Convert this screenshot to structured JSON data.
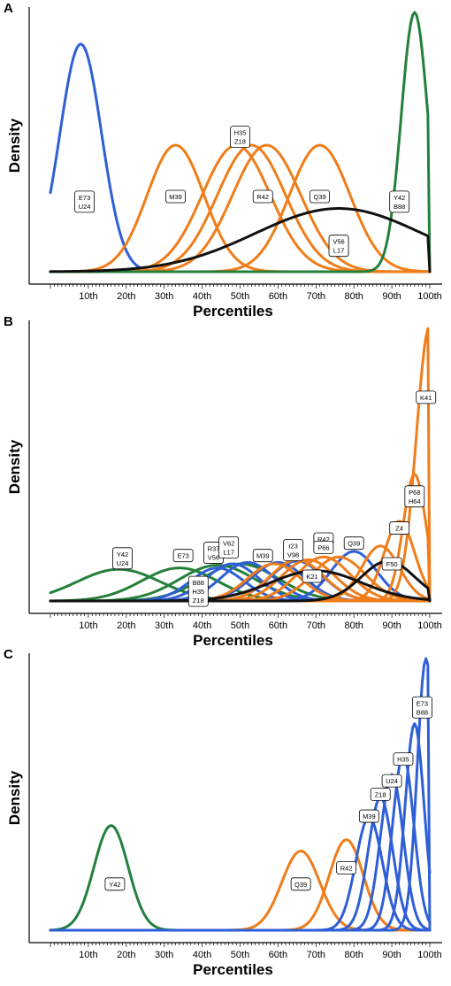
{
  "colors": {
    "green": "#23803a",
    "blue": "#2f5fd6",
    "orange": "#f07d1a",
    "black": "#111111"
  },
  "chart_data": [
    {
      "type": "line",
      "panel": "A",
      "ylabel": "Density",
      "xlabel": "Percentiles",
      "xlim": [
        0,
        100
      ],
      "x_ticks": [
        "10th",
        "20th",
        "30th",
        "40th",
        "50th",
        "60th",
        "70th",
        "80th",
        "90th",
        "100th"
      ],
      "series": [
        {
          "color": "blue",
          "mean": 8,
          "sd": 5.5,
          "peak": 0.72
        },
        {
          "color": "orange",
          "mean": 33,
          "sd": 7.5,
          "peak": 0.4
        },
        {
          "color": "orange",
          "mean": 49,
          "sd": 9,
          "peak": 0.4
        },
        {
          "color": "orange",
          "mean": 53,
          "sd": 9,
          "peak": 0.4
        },
        {
          "color": "orange",
          "mean": 57,
          "sd": 9,
          "peak": 0.4
        },
        {
          "color": "orange",
          "mean": 71,
          "sd": 8,
          "peak": 0.4
        },
        {
          "color": "green",
          "mean": 96,
          "sd": 3.5,
          "peak": 0.82,
          "cutoff": 100
        },
        {
          "color": "black",
          "mean": 76,
          "sd": 22,
          "peak": 0.2,
          "cutoff": 100
        }
      ],
      "labels": [
        {
          "text": [
            "E73",
            "U24"
          ],
          "x": 9,
          "y": 0.27
        },
        {
          "text": [
            "M39"
          ],
          "x": 33,
          "y": 0.29
        },
        {
          "text": [
            "H35",
            "Z18"
          ],
          "x": 50,
          "y": 0.52
        },
        {
          "text": [
            "R42"
          ],
          "x": 56,
          "y": 0.29
        },
        {
          "text": [
            "Q39"
          ],
          "x": 71,
          "y": 0.29
        },
        {
          "text": [
            "V56",
            "L17"
          ],
          "x": 76,
          "y": 0.1
        },
        {
          "text": [
            "Y42",
            "B88"
          ],
          "x": 92,
          "y": 0.27
        }
      ]
    },
    {
      "type": "line",
      "panel": "B",
      "ylabel": "Density",
      "xlabel": "Percentiles",
      "xlim": [
        0,
        100
      ],
      "x_ticks": [
        "10th",
        "20th",
        "30th",
        "40th",
        "50th",
        "60th",
        "70th",
        "80th",
        "90th",
        "100th"
      ],
      "series": [
        {
          "color": "green",
          "mean": 18,
          "sd": 11,
          "peak": 0.115
        },
        {
          "color": "green",
          "mean": 34,
          "sd": 10,
          "peak": 0.12
        },
        {
          "color": "green",
          "mean": 44,
          "sd": 10,
          "peak": 0.13
        },
        {
          "color": "green",
          "mean": 50,
          "sd": 10,
          "peak": 0.135
        },
        {
          "color": "blue",
          "mean": 44,
          "sd": 7,
          "peak": 0.12
        },
        {
          "color": "blue",
          "mean": 48,
          "sd": 7,
          "peak": 0.135
        },
        {
          "color": "blue",
          "mean": 52,
          "sd": 7,
          "peak": 0.14
        },
        {
          "color": "blue",
          "mean": 60,
          "sd": 7,
          "peak": 0.14
        },
        {
          "color": "blue",
          "mean": 65,
          "sd": 7,
          "peak": 0.145
        },
        {
          "color": "blue",
          "mean": 80,
          "sd": 6,
          "peak": 0.18
        },
        {
          "color": "orange",
          "mean": 59,
          "sd": 7,
          "peak": 0.135
        },
        {
          "color": "orange",
          "mean": 65,
          "sd": 7,
          "peak": 0.15
        },
        {
          "color": "orange",
          "mean": 68,
          "sd": 7,
          "peak": 0.15
        },
        {
          "color": "orange",
          "mean": 72,
          "sd": 7,
          "peak": 0.16
        },
        {
          "color": "orange",
          "mean": 76,
          "sd": 7,
          "peak": 0.16
        },
        {
          "color": "orange",
          "mean": 87,
          "sd": 5,
          "peak": 0.2
        },
        {
          "color": "orange",
          "mean": 92,
          "sd": 4,
          "peak": 0.29
        },
        {
          "color": "orange",
          "mean": 96,
          "sd": 3,
          "peak": 0.46,
          "cutoff": 100
        },
        {
          "color": "orange",
          "mean": 100,
          "sd": 3.5,
          "peak": 1.0,
          "cutoff": 100
        },
        {
          "color": "black",
          "mean": 70,
          "sd": 12,
          "peak": 0.11
        },
        {
          "color": "black",
          "mean": 89,
          "sd": 7,
          "peak": 0.145,
          "cutoff": 100
        }
      ],
      "labels": [
        {
          "text": [
            "Y42",
            "U24"
          ],
          "x": 19,
          "y": 0.155
        },
        {
          "text": [
            "E73"
          ],
          "x": 35,
          "y": 0.165
        },
        {
          "text": [
            "B88",
            "H35",
            "Z18"
          ],
          "x": 39,
          "y": 0.035
        },
        {
          "text": [
            "R37",
            "V56"
          ],
          "x": 43,
          "y": 0.175
        },
        {
          "text": [
            "V62",
            "L17"
          ],
          "x": 47,
          "y": 0.195
        },
        {
          "text": [
            "M39"
          ],
          "x": 56,
          "y": 0.165
        },
        {
          "text": [
            "I23",
            "V98"
          ],
          "x": 64,
          "y": 0.185
        },
        {
          "text": [
            "R42"
          ],
          "x": 72,
          "y": 0.225
        },
        {
          "text": [
            "P66"
          ],
          "x": 72,
          "y": 0.195
        },
        {
          "text": [
            "Q39"
          ],
          "x": 80,
          "y": 0.21
        },
        {
          "text": [
            "K21"
          ],
          "x": 69,
          "y": 0.09
        },
        {
          "text": [
            "F50"
          ],
          "x": 90,
          "y": 0.135
        },
        {
          "text": [
            "Z4"
          ],
          "x": 92,
          "y": 0.265
        },
        {
          "text": [
            "P68",
            "H64"
          ],
          "x": 96,
          "y": 0.38
        },
        {
          "text": [
            "K41"
          ],
          "x": 99,
          "y": 0.74
        }
      ]
    },
    {
      "type": "line",
      "panel": "C",
      "ylabel": "Density",
      "xlabel": "Percentiles",
      "xlim": [
        0,
        100
      ],
      "x_ticks": [
        "10th",
        "20th",
        "30th",
        "40th",
        "50th",
        "60th",
        "70th",
        "80th",
        "90th",
        "100th"
      ],
      "series": [
        {
          "color": "green",
          "mean": 16,
          "sd": 4.5,
          "peak": 0.37
        },
        {
          "color": "orange",
          "mean": 66,
          "sd": 5,
          "peak": 0.28
        },
        {
          "color": "orange",
          "mean": 78,
          "sd": 4.5,
          "peak": 0.32
        },
        {
          "color": "blue",
          "mean": 84,
          "sd": 3.5,
          "peak": 0.4
        },
        {
          "color": "blue",
          "mean": 87,
          "sd": 3.2,
          "peak": 0.47
        },
        {
          "color": "blue",
          "mean": 90,
          "sd": 3,
          "peak": 0.55
        },
        {
          "color": "blue",
          "mean": 93,
          "sd": 2.8,
          "peak": 0.62
        },
        {
          "color": "blue",
          "mean": 96,
          "sd": 2.5,
          "peak": 0.73
        },
        {
          "color": "blue",
          "mean": 99,
          "sd": 2.3,
          "peak": 0.96,
          "cutoff": 100
        }
      ],
      "labels": [
        {
          "text": [
            "Y42"
          ],
          "x": 17,
          "y": 0.17
        },
        {
          "text": [
            "Q39"
          ],
          "x": 66,
          "y": 0.17
        },
        {
          "text": [
            "R42"
          ],
          "x": 78,
          "y": 0.23
        },
        {
          "text": [
            "M39"
          ],
          "x": 84,
          "y": 0.42
        },
        {
          "text": [
            "Z18"
          ],
          "x": 87,
          "y": 0.5
        },
        {
          "text": [
            "U24"
          ],
          "x": 90,
          "y": 0.55
        },
        {
          "text": [
            "H35"
          ],
          "x": 93,
          "y": 0.63
        },
        {
          "text": [
            "E73",
            "B88"
          ],
          "x": 98,
          "y": 0.82
        }
      ]
    }
  ]
}
